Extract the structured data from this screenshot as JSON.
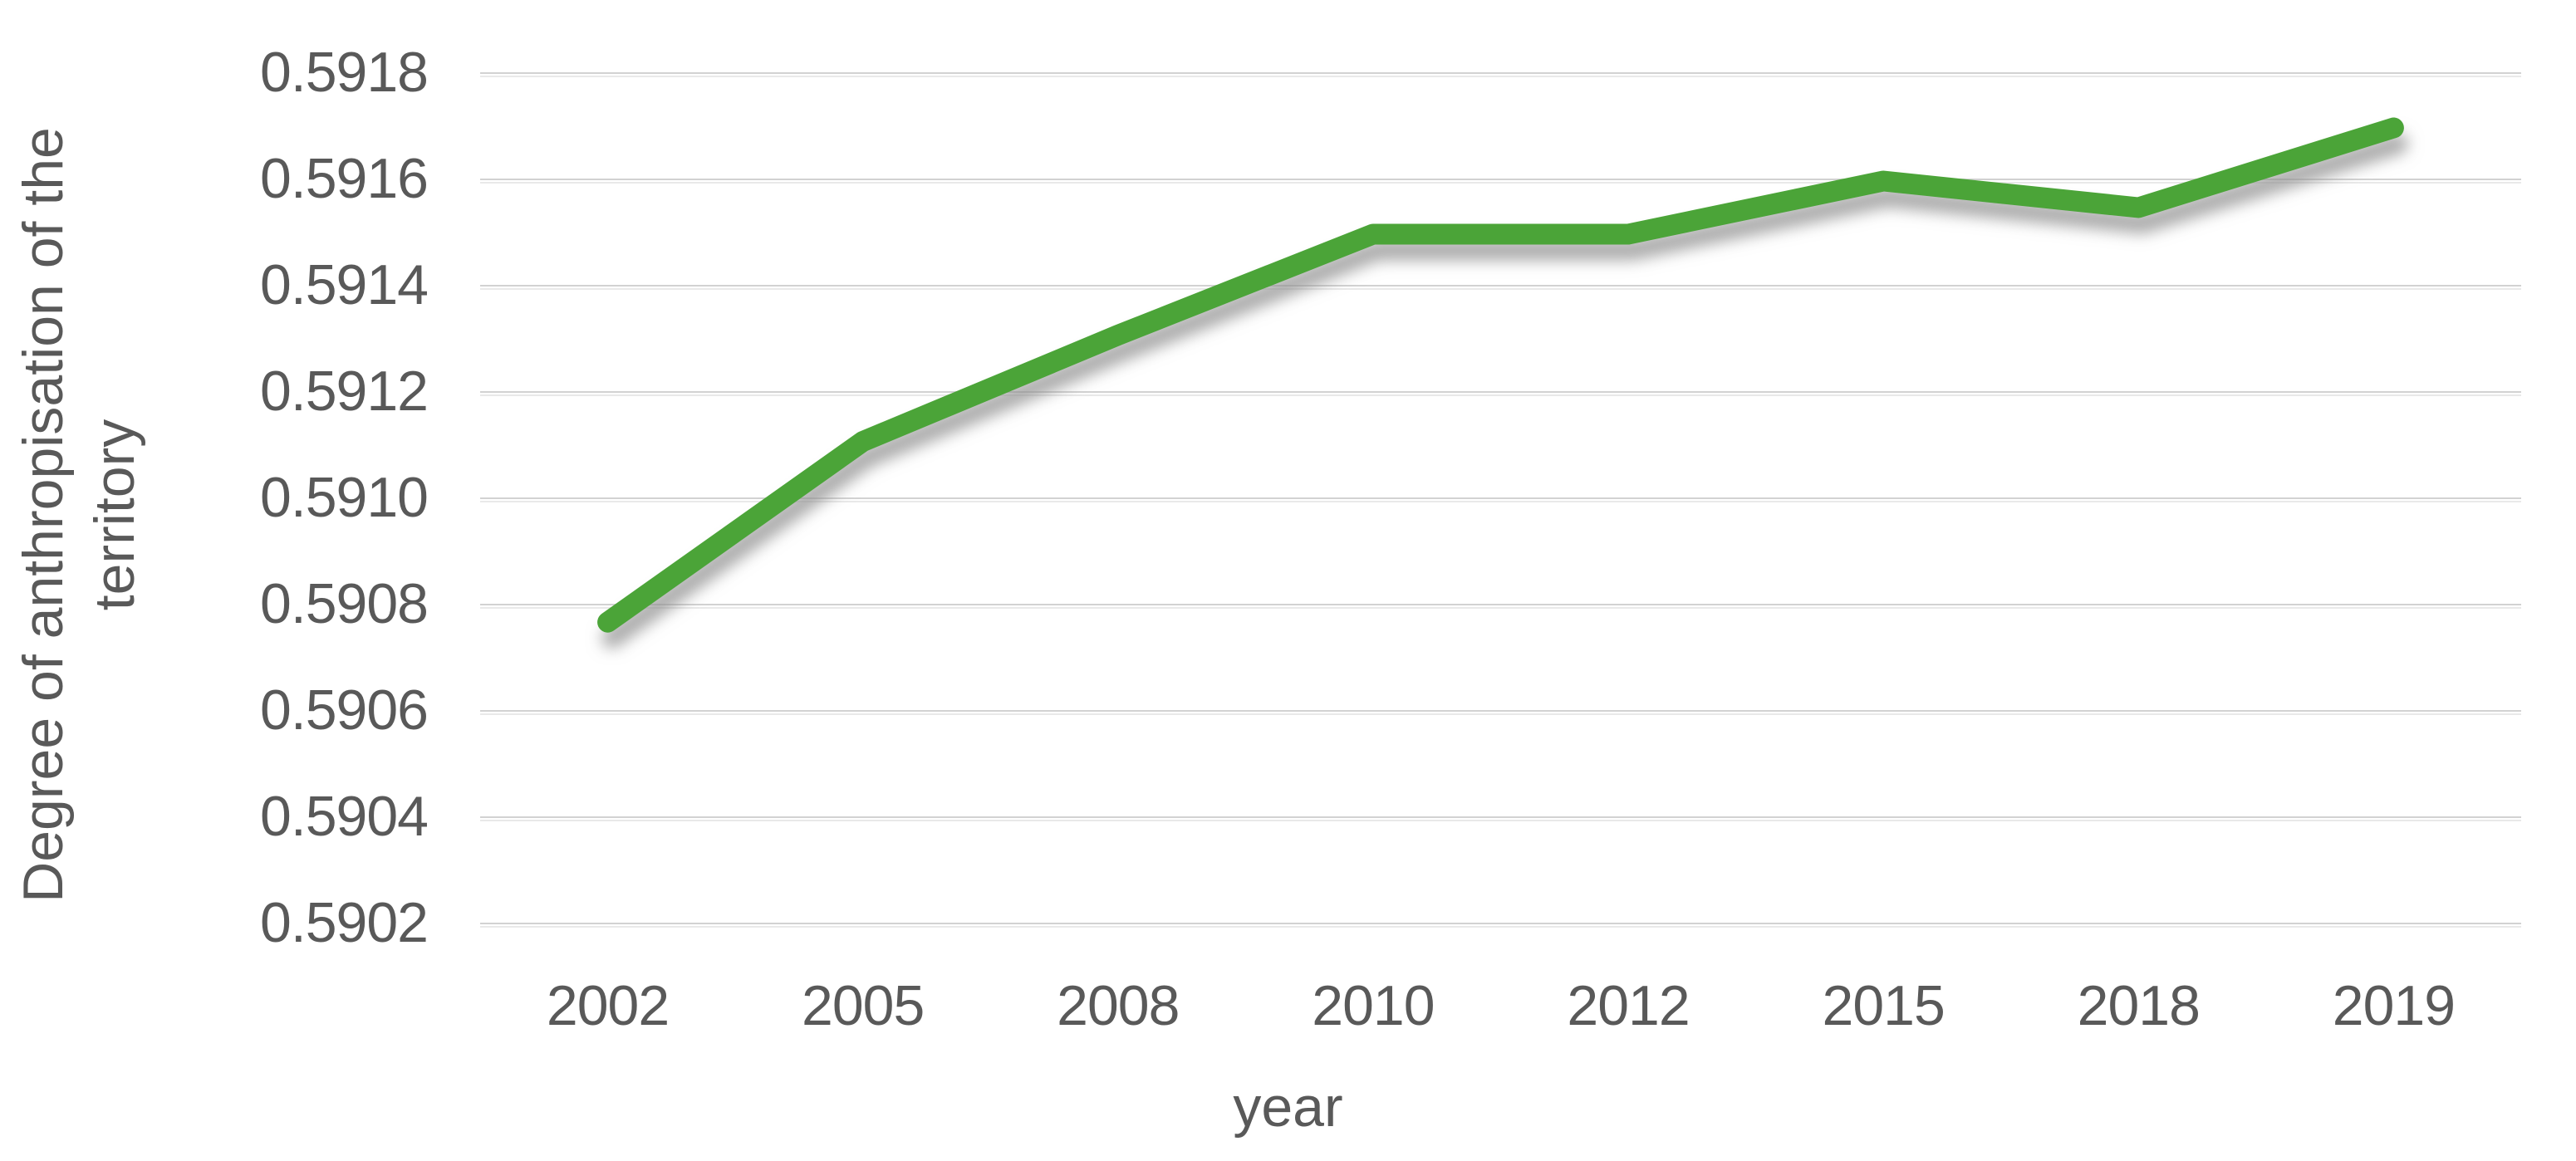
{
  "chart_data": {
    "type": "line",
    "title": "",
    "categories": [
      "2002",
      "2005",
      "2008",
      "2010",
      "2012",
      "2015",
      "2018",
      "2019"
    ],
    "series": [
      {
        "name": "Degree of anthropisation of the territory",
        "color": "#4BA437",
        "values": [
          0.59077,
          0.59111,
          0.59131,
          0.5915,
          0.5915,
          0.5916,
          0.59155,
          0.5917
        ]
      }
    ],
    "xlabel": "year",
    "ylabel": "Degree of anthropisation of the territory",
    "ylabel_lines": [
      "Degree of anthropisation of the",
      "territory"
    ],
    "ylim": [
      0.5902,
      0.5918
    ],
    "ytick_step": 0.0002,
    "yticks": [
      "0.5902",
      "0.5904",
      "0.5906",
      "0.5908",
      "0.5910",
      "0.5912",
      "0.5914",
      "0.5916",
      "0.5918"
    ],
    "grid": true,
    "legend": false
  },
  "colors": {
    "line_green": "#4BA437",
    "label_gray": "#595959",
    "gridline_gray": "#D6D6D6",
    "background": "#FFFFFF"
  }
}
